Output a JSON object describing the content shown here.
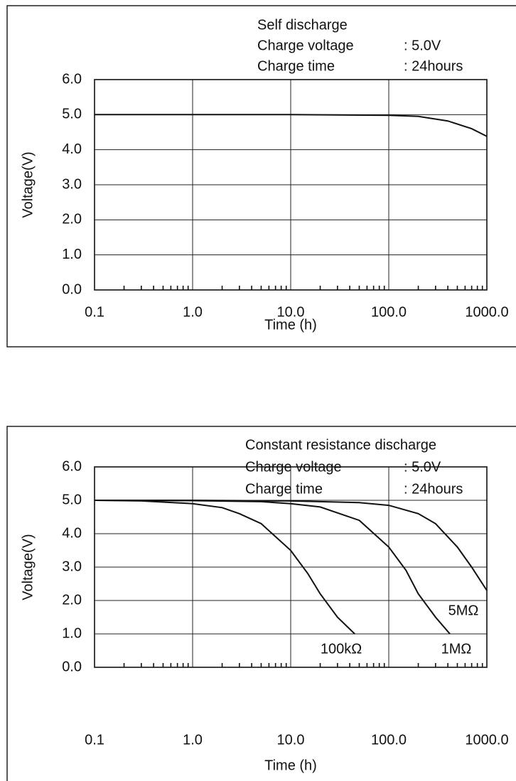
{
  "chart_data": [
    {
      "type": "line",
      "title": "Self discharge",
      "annotations": [
        [
          "Charge voltage",
          ": 5.0V"
        ],
        [
          "Charge time",
          ": 24hours"
        ]
      ],
      "xlabel": "Time (h)",
      "ylabel": "Voltage(V)",
      "xscale": "log",
      "grid": true,
      "xlim": [
        0.1,
        1000
      ],
      "xticks": [
        0.1,
        {
          "value": 1,
          "label": "1.0"
        },
        {
          "value": 10,
          "label": "10.0"
        },
        {
          "value": 100,
          "label": "100.0"
        },
        {
          "value": 1000,
          "label": "1000.0"
        }
      ],
      "ylim": [
        0,
        6
      ],
      "yticks": [
        {
          "value": 0,
          "label": "0.0"
        },
        {
          "value": 1,
          "label": "1.0"
        },
        {
          "value": 2,
          "label": "2.0"
        },
        {
          "value": 3,
          "label": "3.0"
        },
        {
          "value": 4,
          "label": "4.0"
        },
        {
          "value": 5,
          "label": "5.0"
        },
        {
          "value": 6,
          "label": "6.0"
        }
      ],
      "series": [
        {
          "color": "#111111",
          "x": [
            0.1,
            1,
            10,
            100,
            200,
            400,
            700,
            1000
          ],
          "values": [
            5.0,
            5.0,
            5.0,
            4.98,
            4.95,
            4.82,
            4.6,
            4.38
          ]
        }
      ]
    },
    {
      "type": "line",
      "title": "Constant  resistance discharge",
      "annotations": [
        [
          "Charge voltage",
          ": 5.0V"
        ],
        [
          "Charge time",
          ": 24hours"
        ]
      ],
      "xlabel": "Time (h)",
      "ylabel": "Voltage(V)",
      "xscale": "log",
      "grid": true,
      "xlim": [
        0.1,
        1000
      ],
      "xticks": [
        0.1,
        {
          "value": 1,
          "label": "1.0"
        },
        {
          "value": 10,
          "label": "10.0"
        },
        {
          "value": 100,
          "label": "100.0"
        },
        {
          "value": 1000,
          "label": "1000.0"
        }
      ],
      "ylim": [
        0,
        6
      ],
      "yticks": [
        {
          "value": 0,
          "label": "0.0"
        },
        {
          "value": 1,
          "label": "1.0"
        },
        {
          "value": 2,
          "label": "2.0"
        },
        {
          "value": 3,
          "label": "3.0"
        },
        {
          "value": 4,
          "label": "4.0"
        },
        {
          "value": 5,
          "label": "5.0"
        },
        {
          "value": 6,
          "label": "6.0"
        }
      ],
      "series": [
        {
          "name": "100kΩ",
          "color": "#111111",
          "x": [
            0.1,
            0.3,
            1,
            2,
            3,
            5,
            10,
            15,
            20,
            30,
            45
          ],
          "values": [
            5.0,
            4.98,
            4.9,
            4.78,
            4.6,
            4.3,
            3.5,
            2.8,
            2.2,
            1.5,
            1.0
          ]
        },
        {
          "name": "1MΩ",
          "color": "#111111",
          "x": [
            0.1,
            1,
            5,
            10,
            20,
            50,
            100,
            150,
            200,
            300,
            420
          ],
          "values": [
            5.0,
            4.99,
            4.96,
            4.9,
            4.8,
            4.4,
            3.6,
            2.9,
            2.2,
            1.5,
            1.0
          ]
        },
        {
          "name": "5MΩ",
          "color": "#111111",
          "x": [
            0.1,
            1,
            10,
            50,
            100,
            200,
            300,
            500,
            700,
            1000
          ],
          "values": [
            5.0,
            5.0,
            4.98,
            4.93,
            4.85,
            4.6,
            4.3,
            3.6,
            3.0,
            2.3
          ]
        }
      ]
    }
  ]
}
